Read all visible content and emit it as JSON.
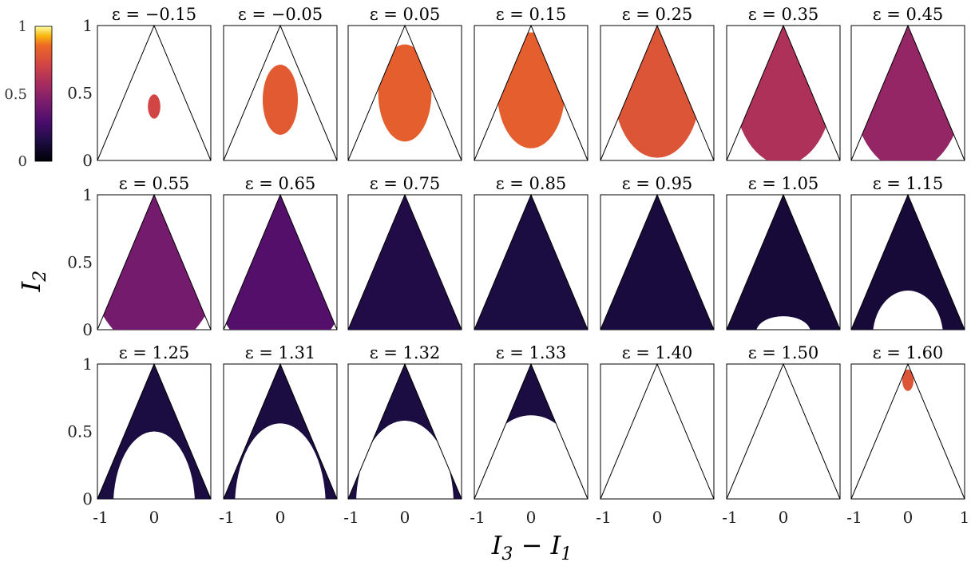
{
  "chart_data": {
    "type": "heatmap",
    "title": "",
    "xlabel": "I_3 − I_1",
    "ylabel": "I_2",
    "xlim": [
      -1,
      1
    ],
    "ylim": [
      0,
      1
    ],
    "x_ticks": [
      "-1",
      "0",
      "1"
    ],
    "y_ticks": [
      "0",
      "0.5",
      "1"
    ],
    "colorbar": {
      "ticks": [
        "0",
        "0.5",
        "1"
      ],
      "range": [
        0,
        1
      ],
      "colormap": "inferno"
    },
    "panel_title_prefix": "ε = ",
    "panels": [
      {
        "eps": "−0.15",
        "blob": [
          0.0,
          0.4,
          0.11,
          0.09
        ],
        "hole": null,
        "int": 0.72
      },
      {
        "eps": "−0.05",
        "blob": [
          0.0,
          0.45,
          0.31,
          0.26
        ],
        "hole": null,
        "int": 0.8
      },
      {
        "eps": "0.05",
        "blob": [
          0.0,
          0.5,
          0.47,
          0.36
        ],
        "hole": null,
        "int": 0.82
      },
      {
        "eps": "0.15",
        "blob": [
          0.0,
          0.52,
          0.6,
          0.43
        ],
        "hole": null,
        "int": 0.82
      },
      {
        "eps": "0.25",
        "blob": [
          0.0,
          0.52,
          0.76,
          0.5
        ],
        "hole": null,
        "int": 0.78
      },
      {
        "eps": "0.35",
        "blob": [
          0.0,
          0.55,
          0.88,
          0.58
        ],
        "hole": null,
        "int": 0.6
      },
      {
        "eps": "0.45",
        "blob": [
          0.0,
          0.57,
          1.0,
          0.65
        ],
        "hole": null,
        "int": 0.52
      },
      {
        "eps": "0.55",
        "blob": [
          0.0,
          0.6,
          1.2,
          0.75
        ],
        "hole": null,
        "int": 0.42
      },
      {
        "eps": "0.65",
        "blob": [
          0.0,
          0.62,
          1.3,
          0.85
        ],
        "hole": null,
        "int": 0.32
      },
      {
        "eps": "0.75",
        "blob": [
          0.0,
          0.66,
          1.5,
          1.0
        ],
        "hole": null,
        "int": 0.16
      },
      {
        "eps": "0.85",
        "blob": [
          0.0,
          0.7,
          1.6,
          1.05
        ],
        "hole": null,
        "int": 0.14
      },
      {
        "eps": "0.95",
        "blob": [
          0.0,
          0.7,
          1.7,
          1.1
        ],
        "hole": null,
        "int": 0.13
      },
      {
        "eps": "1.05",
        "blob": [
          0.0,
          0.7,
          1.8,
          1.15
        ],
        "hole": [
          0.0,
          -0.02,
          0.48,
          0.12
        ],
        "int": 0.12
      },
      {
        "eps": "1.15",
        "blob": [
          0.0,
          0.7,
          1.8,
          1.2
        ],
        "hole": [
          0.0,
          -0.05,
          0.62,
          0.34
        ],
        "int": 0.12
      },
      {
        "eps": "1.25",
        "blob": [
          0.0,
          0.7,
          1.8,
          1.2
        ],
        "hole": [
          0.0,
          -0.05,
          0.72,
          0.55
        ],
        "int": 0.14
      },
      {
        "eps": "1.31",
        "blob": [
          0.0,
          0.7,
          1.8,
          1.2
        ],
        "hole": [
          0.0,
          -0.05,
          0.8,
          0.61
        ],
        "int": 0.14
      },
      {
        "eps": "1.32",
        "blob": [
          0.0,
          0.7,
          1.8,
          1.2
        ],
        "hole": [
          0.0,
          -0.04,
          0.86,
          0.62
        ],
        "int": 0.14
      },
      {
        "eps": "1.33",
        "blob": [
          0.0,
          0.7,
          1.8,
          1.2
        ],
        "hole": [
          0.0,
          -0.02,
          1.02,
          0.64
        ],
        "int": 0.14
      },
      {
        "eps": "1.40",
        "blob": [
          0.0,
          0.7,
          1.8,
          1.2
        ],
        "hole": [
          0.0,
          0.18,
          1.65,
          1.06
        ],
        "int": 0.14
      },
      {
        "eps": "1.50",
        "blob": [
          0.0,
          0.7,
          1.8,
          1.2
        ],
        "hole": [
          0.0,
          0.2,
          1.8,
          1.08
        ],
        "int": 0.14
      },
      {
        "eps": "1.60",
        "blob": [
          0.0,
          0.88,
          0.1,
          0.08
        ],
        "hole": null,
        "int": 0.78
      }
    ]
  }
}
